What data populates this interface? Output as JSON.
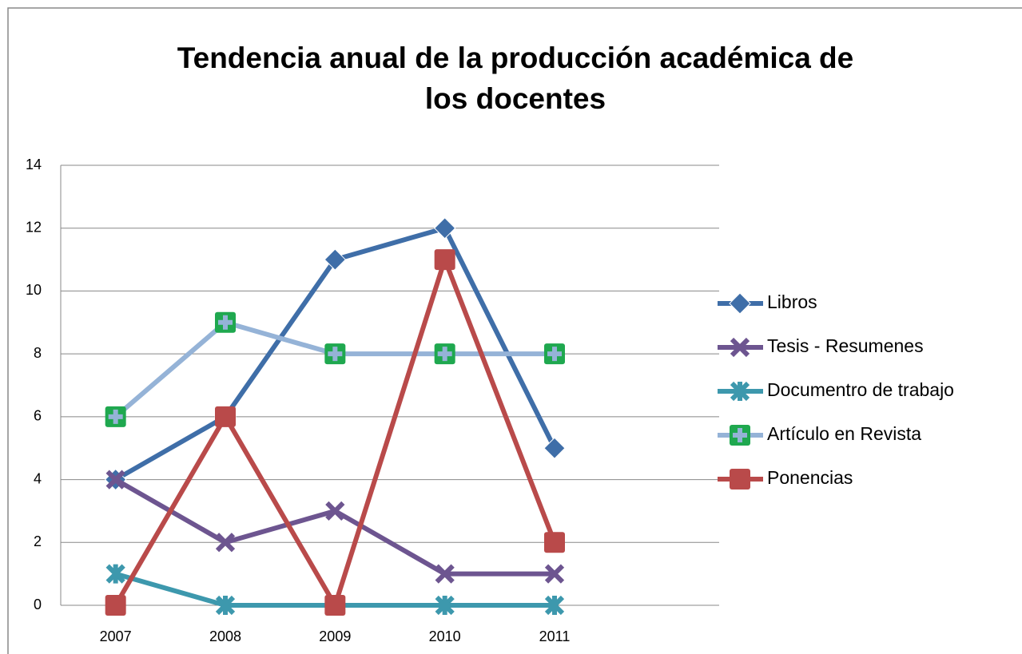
{
  "chart_data": {
    "type": "line",
    "title": [
      "Tendencia anual de la producción académica de",
      "los docentes"
    ],
    "categories": [
      "2007",
      "2008",
      "2009",
      "2010",
      "2011",
      null
    ],
    "series": [
      {
        "name": "Libros",
        "color": "#3f6ea8",
        "marker": "diamond",
        "values": [
          4,
          6,
          11,
          12,
          5,
          null
        ]
      },
      {
        "name": "Tesis - Resumenes",
        "color": "#6d5590",
        "marker": "x",
        "values": [
          4,
          2,
          3,
          1,
          1,
          null
        ]
      },
      {
        "name": "Documentro de trabajo",
        "color": "#3d98ad",
        "marker": "star",
        "values": [
          1,
          0,
          0,
          0,
          0,
          null
        ]
      },
      {
        "name": "Artículo en Revista",
        "color": "#95b3d7",
        "marker": "plus-square",
        "marker_color": "#1fa84f",
        "values": [
          6,
          9,
          8,
          8,
          8,
          null
        ]
      },
      {
        "name": "Ponencias",
        "color": "#b94a4a",
        "marker": "square",
        "values": [
          0,
          6,
          0,
          11,
          2,
          null
        ]
      }
    ],
    "ylim": [
      0,
      14
    ],
    "yticks": [
      0,
      2,
      4,
      6,
      8,
      10,
      12,
      14
    ],
    "grid": true,
    "legend": "right"
  }
}
